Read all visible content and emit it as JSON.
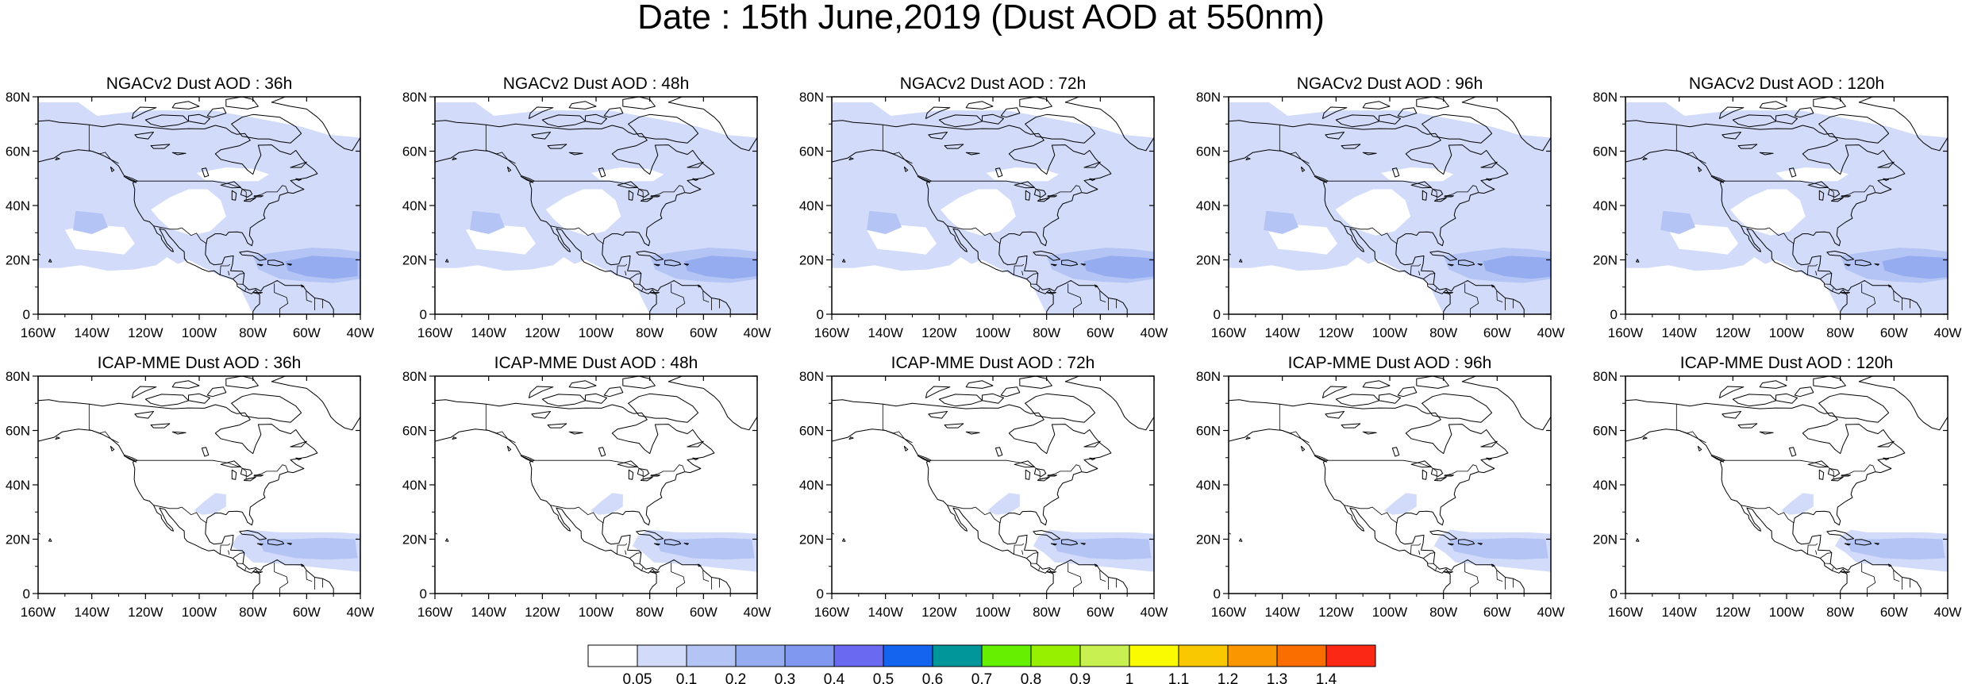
{
  "title": "Date : 15th June,2019 (Dust AOD at 550nm)",
  "lat_ticks": [
    "80N",
    "60N",
    "40N",
    "20N",
    "0"
  ],
  "lon_ticks": [
    "160W",
    "140W",
    "120W",
    "100W",
    "80W",
    "60W",
    "40W"
  ],
  "rows": [
    {
      "model": "NGACv2",
      "panels": [
        {
          "title": "NGACv2 Dust AOD : 36h",
          "coverage": "broad"
        },
        {
          "title": "NGACv2 Dust AOD : 48h",
          "coverage": "broad"
        },
        {
          "title": "NGACv2 Dust AOD : 72h",
          "coverage": "broad"
        },
        {
          "title": "NGACv2 Dust AOD : 96h",
          "coverage": "broad"
        },
        {
          "title": "NGACv2 Dust AOD : 120h",
          "coverage": "broad"
        }
      ]
    },
    {
      "model": "ICAP-MME",
      "panels": [
        {
          "title": "ICAP-MME Dust AOD : 36h",
          "coverage": "plume"
        },
        {
          "title": "ICAP-MME Dust AOD : 48h",
          "coverage": "plume"
        },
        {
          "title": "ICAP-MME Dust AOD : 72h",
          "coverage": "plume"
        },
        {
          "title": "ICAP-MME Dust AOD : 96h",
          "coverage": "plume"
        },
        {
          "title": "ICAP-MME Dust AOD : 120h",
          "coverage": "plume"
        }
      ]
    }
  ],
  "colorbar": {
    "colors": [
      "#ffffff",
      "#d2dcfa",
      "#b4c4f4",
      "#96acf0",
      "#8098f0",
      "#6a6af0",
      "#1464f0",
      "#00969a",
      "#64f000",
      "#96f000",
      "#c8f050",
      "#fafa00",
      "#fac800",
      "#fa9600",
      "#fa6e00",
      "#fa2814"
    ],
    "labels": [
      "0.05",
      "0.1",
      "0.2",
      "0.3",
      "0.4",
      "0.5",
      "0.6",
      "0.7",
      "0.8",
      "0.9",
      "1",
      "1.1",
      "1.2",
      "1.3",
      "1.4"
    ]
  }
}
